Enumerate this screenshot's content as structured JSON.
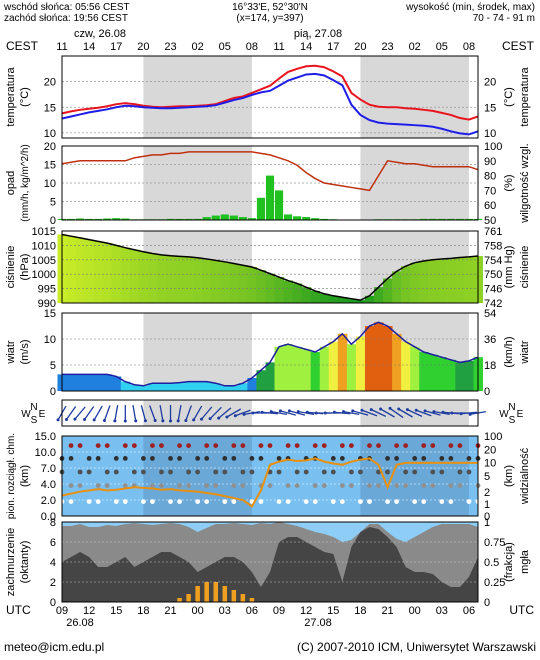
{
  "header": {
    "sunrise": "wschód słońca: 05:56 CEST",
    "sunset": "zachód słońca: 19:56 CEST",
    "coords": "16°33'E, 52°30'N",
    "grid": "(x=174, y=397)",
    "height_label": "wysokość (min, środek, max)",
    "height_values": "70 - 74 - 91 m"
  },
  "timeline": {
    "tz_top": "CEST",
    "tz_bottom": "UTC",
    "day1_top": "czw, 26.08",
    "day2_top": "pią, 27.08",
    "day1_bottom": "26.08",
    "day2_bottom": "27.08",
    "cest_hours": [
      "11",
      "14",
      "17",
      "20",
      "23",
      "02",
      "05",
      "08",
      "11",
      "14",
      "17",
      "20",
      "23",
      "02",
      "05",
      "08"
    ],
    "utc_hours": [
      "09",
      "12",
      "15",
      "18",
      "21",
      "00",
      "03",
      "06",
      "09",
      "12",
      "15",
      "18",
      "21",
      "00",
      "03",
      "06"
    ]
  },
  "footer": {
    "email": "meteo@icm.edu.pl",
    "copyright": "(C) 2007-2010 ICM, Uniwersytet Warszawski"
  },
  "colors": {
    "night": "#d8d8d8",
    "temp": "#e8141e",
    "dew": "#1e1ee8",
    "humidity": "#c03010",
    "precip": "#20c020",
    "pressure_line": "#000000",
    "wind_line": "#1e1ea0",
    "vis_bg": "#79bff0",
    "vis_line": "#e89010",
    "cloud_sky": "#8ecdf5",
    "fog": "#f0a020"
  },
  "chart_data": [
    {
      "type": "line",
      "panel": "temperature",
      "ylabel_left": "temperatura",
      "unit_left": "(°C)",
      "ylabel_right": "temperatura",
      "unit_right": "(°C)",
      "ylim": [
        9,
        25
      ],
      "yticks": [
        10,
        15,
        20
      ],
      "x": [
        9,
        10,
        11,
        12,
        13,
        14,
        15,
        16,
        17,
        18,
        19,
        20,
        21,
        22,
        23,
        24,
        25,
        26,
        27,
        28,
        29,
        30,
        31,
        32,
        33,
        34,
        35,
        36,
        37,
        38,
        39,
        40,
        41,
        42,
        43,
        44,
        45,
        46,
        47,
        48,
        49,
        50,
        51,
        52,
        53,
        54,
        55
      ],
      "series": [
        {
          "role": "temperature",
          "values": [
            13.8,
            14.2,
            14.5,
            14.7,
            14.9,
            15.2,
            15.6,
            15.8,
            15.6,
            15.3,
            15.1,
            15.0,
            15.1,
            15.2,
            15.2,
            15.3,
            15.4,
            15.6,
            16.2,
            16.8,
            17.1,
            17.8,
            18.5,
            19.2,
            20.6,
            21.9,
            22.5,
            23.0,
            23.1,
            22.8,
            22.0,
            21.0,
            17.8,
            16.5,
            15.5,
            15.1,
            15.0,
            15.0,
            14.8,
            14.7,
            14.5,
            14.3,
            13.9,
            13.5,
            12.9,
            12.6,
            13.2
          ]
        },
        {
          "role": "dew-point",
          "values": [
            12.8,
            13.2,
            13.6,
            14.0,
            14.3,
            14.6,
            15.0,
            15.3,
            15.2,
            15.0,
            14.9,
            14.8,
            14.8,
            14.9,
            15.0,
            15.1,
            15.2,
            15.4,
            15.9,
            16.4,
            16.8,
            17.4,
            17.9,
            18.2,
            19.2,
            20.2,
            20.8,
            21.4,
            21.5,
            21.2,
            20.3,
            19.3,
            15.5,
            13.5,
            12.5,
            12.0,
            11.8,
            11.7,
            11.6,
            11.5,
            11.4,
            11.2,
            10.8,
            10.3,
            9.9,
            9.7,
            10.3
          ]
        }
      ]
    },
    {
      "type": "bar",
      "panel": "precipitation-humidity",
      "ylabel_left": "opad",
      "unit_left": "(mm/h, kg/m^2/h)",
      "ylabel_right": "wilgotność wzgl.",
      "unit_right": "(%)",
      "ylim_left": [
        0,
        20
      ],
      "yticks_left": [
        0,
        5,
        10,
        15,
        20
      ],
      "ylim_right": [
        50,
        100
      ],
      "yticks_right": [
        50,
        60,
        70,
        80,
        90,
        100
      ],
      "x": [
        9,
        10,
        11,
        12,
        13,
        14,
        15,
        16,
        17,
        18,
        19,
        20,
        21,
        22,
        23,
        24,
        25,
        26,
        27,
        28,
        29,
        30,
        31,
        32,
        33,
        34,
        35,
        36,
        37,
        38,
        39,
        40,
        41,
        42,
        43,
        44,
        45,
        46,
        47,
        48,
        49,
        50,
        51,
        52,
        53,
        54,
        55
      ],
      "precip": [
        0.3,
        0.3,
        0.4,
        0.3,
        0.3,
        0.4,
        0.5,
        0.4,
        0.2,
        0.2,
        0.2,
        0.2,
        0.3,
        0.3,
        0.3,
        0.3,
        0.8,
        1.2,
        1.5,
        1.2,
        0.8,
        0.5,
        6.0,
        12.0,
        8.0,
        1.5,
        1.0,
        0.8,
        0.5,
        0.3,
        0.2,
        0.1,
        0.1,
        0.1,
        0.1,
        0.2,
        0.2,
        0.2,
        0.2,
        0.2,
        0.3,
        0.3,
        0.3,
        0.3,
        0.3,
        0.3,
        0.3
      ],
      "humidity": [
        88,
        89,
        90,
        90,
        90,
        90,
        90,
        90,
        92,
        93,
        94,
        94,
        95,
        95,
        96,
        96,
        96,
        96,
        96,
        96,
        96,
        96,
        95,
        94,
        92,
        90,
        87,
        82,
        78,
        75,
        74,
        73,
        72,
        71,
        70,
        80,
        90,
        89,
        88,
        88,
        87,
        86,
        86,
        86,
        86,
        86,
        84
      ]
    },
    {
      "type": "area",
      "panel": "pressure",
      "ylabel_left": "ciśnienie",
      "unit_left": "(hPa)",
      "ylabel_right": "ciśnienie",
      "unit_right": "(mm Hg)",
      "ylim_left": [
        990,
        1015
      ],
      "yticks_left": [
        990,
        995,
        1000,
        1005,
        1010,
        1015
      ],
      "yticks_right": [
        "742",
        "746",
        "750",
        "754",
        "758",
        "761"
      ],
      "x": [
        9,
        10,
        11,
        12,
        13,
        14,
        15,
        16,
        17,
        18,
        19,
        20,
        21,
        22,
        23,
        24,
        25,
        26,
        27,
        28,
        29,
        30,
        31,
        32,
        33,
        34,
        35,
        36,
        37,
        38,
        39,
        40,
        41,
        42,
        43,
        44,
        45,
        46,
        47,
        48,
        49,
        50,
        51,
        52,
        53,
        54,
        55
      ],
      "values": [
        1013.8,
        1013.2,
        1012.6,
        1012.0,
        1011.4,
        1010.8,
        1010.0,
        1009.2,
        1008.5,
        1007.8,
        1007.2,
        1006.7,
        1006.4,
        1006.2,
        1006.0,
        1005.7,
        1005.3,
        1004.8,
        1004.3,
        1003.7,
        1003.1,
        1002.5,
        1001.4,
        1000.2,
        999.0,
        997.8,
        996.8,
        995.5,
        994.2,
        993.2,
        992.5,
        992.0,
        991.5,
        991.0,
        992.5,
        995.5,
        998.5,
        1001.0,
        1002.8,
        1004.0,
        1004.6,
        1005.0,
        1005.3,
        1005.5,
        1005.8,
        1006.0,
        1006.3
      ]
    },
    {
      "type": "area",
      "panel": "wind",
      "ylabel_left": "wiatr",
      "unit_left": "(m/s)",
      "ylabel_right": "wiatr",
      "unit_right": "(km/h)",
      "ylim_left": [
        0,
        15
      ],
      "yticks_left": [
        0,
        5,
        10,
        15
      ],
      "yticks_right": [
        "0",
        "18",
        "36",
        "54"
      ],
      "x": [
        9,
        10,
        11,
        12,
        13,
        14,
        15,
        16,
        17,
        18,
        19,
        20,
        21,
        22,
        23,
        24,
        25,
        26,
        27,
        28,
        29,
        30,
        31,
        32,
        33,
        34,
        35,
        36,
        37,
        38,
        39,
        40,
        41,
        42,
        43,
        44,
        45,
        46,
        47,
        48,
        49,
        50,
        51,
        52,
        53,
        54,
        55
      ],
      "values": [
        3.2,
        3.2,
        3.2,
        3.2,
        3.2,
        3.2,
        2.8,
        1.8,
        1.2,
        1.0,
        1.5,
        1.5,
        1.5,
        1.6,
        1.8,
        1.8,
        1.8,
        1.5,
        1.0,
        1.0,
        1.5,
        2.5,
        4.0,
        5.5,
        8.5,
        9.0,
        8.5,
        8.0,
        7.5,
        8.5,
        9.5,
        11.0,
        9.0,
        10.5,
        12.5,
        13.2,
        12.5,
        11.0,
        9.5,
        8.5,
        7.5,
        7.0,
        6.5,
        6.0,
        5.5,
        5.8,
        6.5
      ]
    },
    {
      "type": "scatter",
      "panel": "wind-direction",
      "label": "Wiatr",
      "x": [
        9,
        10,
        11,
        12,
        13,
        14,
        15,
        16,
        17,
        18,
        19,
        20,
        21,
        22,
        23,
        24,
        25,
        26,
        27,
        28,
        29,
        30,
        31,
        32,
        33,
        34,
        35,
        36,
        37,
        38,
        39,
        40,
        41,
        42,
        43,
        44,
        45,
        46,
        47,
        48,
        49,
        50,
        51,
        52,
        53,
        54,
        55
      ],
      "direction_deg": [
        210,
        215,
        220,
        215,
        210,
        200,
        190,
        180,
        170,
        165,
        160,
        170,
        180,
        190,
        200,
        210,
        220,
        225,
        230,
        240,
        250,
        260,
        270,
        275,
        280,
        285,
        285,
        280,
        275,
        270,
        270,
        275,
        280,
        285,
        290,
        295,
        300,
        305,
        300,
        295,
        290,
        285,
        280,
        275,
        270,
        265,
        260
      ]
    },
    {
      "type": "line",
      "panel": "cloud-base-visibility",
      "ylabel_left": "pion. rozciągł. chm.",
      "unit_left": "(km)",
      "ylabel_right": "widzialność",
      "unit_right": "(km)",
      "ylim_left": [
        0,
        15
      ],
      "yticks_left": [
        "0.0",
        "2.0",
        "4.0",
        "7.0",
        "10.0",
        "15.0"
      ],
      "yticks_right": [
        "0",
        "1",
        "2",
        "5",
        "10",
        "20",
        "100"
      ],
      "x": [
        9,
        10,
        11,
        12,
        13,
        14,
        15,
        16,
        17,
        18,
        19,
        20,
        21,
        22,
        23,
        24,
        25,
        26,
        27,
        28,
        29,
        30,
        31,
        32,
        33,
        34,
        35,
        36,
        37,
        38,
        39,
        40,
        41,
        42,
        43,
        44,
        45,
        46,
        47,
        48,
        49,
        50,
        51,
        52,
        53,
        54,
        55
      ],
      "visibility": [
        3.2,
        3.5,
        3.8,
        4.0,
        4.2,
        4.0,
        4.1,
        4.3,
        4.5,
        4.4,
        4.3,
        4.1,
        4.2,
        4.0,
        3.9,
        3.8,
        3.6,
        3.4,
        3.1,
        2.8,
        2.5,
        1.5,
        4.0,
        8.0,
        8.5,
        8.8,
        8.6,
        8.7,
        9.0,
        8.5,
        8.2,
        8.0,
        8.5,
        8.8,
        9.0,
        8.0,
        4.5,
        8.0,
        8.3,
        8.3,
        8.3,
        8.3,
        8.3,
        8.3,
        8.3,
        8.3,
        8.3
      ]
    },
    {
      "type": "area",
      "panel": "cloud-cover-fog",
      "ylabel_left": "zachmurzenie",
      "unit_left": "(oktanty)",
      "ylabel_right": "mgła",
      "unit_right": "(frakcja)",
      "ylim_left": [
        0,
        8
      ],
      "yticks_left": [
        0,
        2,
        4,
        6,
        8
      ],
      "ylim_right": [
        0,
        1
      ],
      "yticks_right": [
        "0",
        "0.25",
        "0.5",
        "0.75",
        "1"
      ],
      "x": [
        9,
        10,
        11,
        12,
        13,
        14,
        15,
        16,
        17,
        18,
        19,
        20,
        21,
        22,
        23,
        24,
        25,
        26,
        27,
        28,
        29,
        30,
        31,
        32,
        33,
        34,
        35,
        36,
        37,
        38,
        39,
        40,
        41,
        42,
        43,
        44,
        45,
        46,
        47,
        48,
        49,
        50,
        51,
        52,
        53,
        54,
        55
      ],
      "total_cloud": [
        7.6,
        7.6,
        7.8,
        7.5,
        7.5,
        7.7,
        7.6,
        7.8,
        7.9,
        7.8,
        7.7,
        7.8,
        7.9,
        7.8,
        7.5,
        7.0,
        7.4,
        7.8,
        7.8,
        7.9,
        7.8,
        7.7,
        7.9,
        7.8,
        8.0,
        7.8,
        7.6,
        7.3,
        7.0,
        6.8,
        6.5,
        6.0,
        6.2,
        7.0,
        7.8,
        7.8,
        7.0,
        6.3,
        6.0,
        6.5,
        7.0,
        7.5,
        7.8,
        7.8,
        7.8,
        7.8,
        7.5
      ],
      "low_cloud": [
        4.0,
        4.5,
        5.0,
        4.5,
        3.5,
        3.5,
        4.0,
        4.5,
        3.5,
        4.0,
        4.5,
        5.0,
        5.0,
        4.5,
        4.0,
        3.0,
        3.5,
        4.0,
        4.5,
        4.5,
        4.0,
        3.0,
        1.5,
        3.0,
        6.0,
        6.5,
        6.5,
        6.0,
        5.5,
        5.0,
        4.8,
        2.0,
        5.5,
        7.0,
        7.5,
        7.3,
        6.5,
        5.5,
        3.5,
        3.0,
        3.0,
        2.8,
        2.0,
        1.5,
        1.5,
        2.5,
        4.5
      ],
      "fog": [
        0,
        0,
        0,
        0,
        0,
        0,
        0,
        0,
        0,
        0,
        0,
        0,
        0,
        0.05,
        0.1,
        0.2,
        0.25,
        0.25,
        0.2,
        0.15,
        0.1,
        0.05,
        0,
        0,
        0,
        0,
        0,
        0,
        0,
        0,
        0,
        0,
        0,
        0,
        0,
        0,
        0,
        0,
        0,
        0,
        0,
        0,
        0,
        0,
        0,
        0,
        0
      ]
    }
  ]
}
